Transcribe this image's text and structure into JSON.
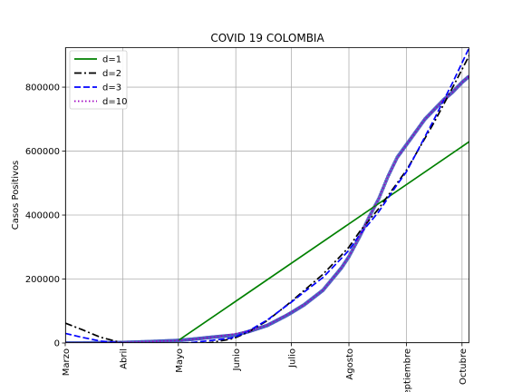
{
  "chart_data": {
    "type": "line",
    "title": "COVID 19 COLOMBIA",
    "xlabel": "",
    "ylabel": "Casos Positivos",
    "x_unit": "day of 2020",
    "xlim": [
      61,
      279
    ],
    "ylim": [
      0,
      925000
    ],
    "x_ticks": [
      {
        "x": 61,
        "label": "Marzo"
      },
      {
        "x": 92,
        "label": "Abril"
      },
      {
        "x": 122,
        "label": "Mayo"
      },
      {
        "x": 153,
        "label": "Junio"
      },
      {
        "x": 183,
        "label": "Julio"
      },
      {
        "x": 214,
        "label": "Agosto"
      },
      {
        "x": 245,
        "label": "Septiembre"
      },
      {
        "x": 275,
        "label": "Octubre"
      }
    ],
    "y_ticks": [
      {
        "y": 0,
        "label": "0"
      },
      {
        "y": 200000,
        "label": "200000"
      },
      {
        "y": 400000,
        "label": "400000"
      },
      {
        "y": 600000,
        "label": "600000"
      },
      {
        "y": 800000,
        "label": "800000"
      }
    ],
    "grid": true,
    "legend_position": "top-left",
    "observed": {
      "color": "#4a5fc1",
      "x": [
        61,
        70,
        80,
        92,
        100,
        110,
        122,
        130,
        140,
        153,
        160,
        170,
        180,
        183,
        190,
        200,
        205,
        210,
        214,
        220,
        225,
        230,
        235,
        240,
        245,
        250,
        255,
        260,
        265,
        270,
        275,
        279
      ],
      "y": [
        0,
        100,
        1000,
        1500,
        3000,
        5000,
        8000,
        12000,
        18000,
        25000,
        36000,
        55000,
        85000,
        95000,
        120000,
        165000,
        200000,
        235000,
        270000,
        335000,
        395000,
        450000,
        520000,
        580000,
        620000,
        660000,
        700000,
        730000,
        760000,
        785000,
        815000,
        835000
      ]
    },
    "series": [
      {
        "name": "d=1",
        "color": "#008000",
        "dash": "",
        "x": [
          122,
          279
        ],
        "y": [
          8000,
          630000
        ]
      },
      {
        "name": "d=2",
        "color": "#000000",
        "dash": "8,3,2,3",
        "x": [
          61,
          70,
          80,
          92,
          100,
          110,
          122,
          130,
          140,
          150,
          153,
          160,
          170,
          183,
          190,
          200,
          210,
          214,
          220,
          230,
          240,
          245,
          250,
          260,
          270,
          279
        ],
        "y": [
          62000,
          42000,
          18000,
          0,
          -8000,
          -12000,
          -10000,
          -5000,
          2000,
          12000,
          17000,
          35000,
          70000,
          130000,
          165000,
          215000,
          275000,
          300000,
          350000,
          420000,
          500000,
          540000,
          590000,
          690000,
          800000,
          900000
        ]
      },
      {
        "name": "d=3",
        "color": "#0000ff",
        "dash": "7,3",
        "x": [
          61,
          70,
          80,
          92,
          100,
          110,
          122,
          130,
          140,
          150,
          153,
          160,
          170,
          183,
          190,
          200,
          210,
          214,
          220,
          230,
          240,
          245,
          250,
          260,
          270,
          279
        ],
        "y": [
          30000,
          18000,
          6000,
          0,
          -3000,
          -4000,
          -2000,
          2000,
          8000,
          15000,
          20000,
          38000,
          72000,
          128000,
          160000,
          205000,
          265000,
          290000,
          340000,
          410000,
          495000,
          535000,
          590000,
          700000,
          815000,
          925000
        ]
      },
      {
        "name": "d=10",
        "color": "#a000c0",
        "dash": "1.5,2.5",
        "x": [
          61,
          70,
          80,
          92,
          100,
          110,
          122,
          130,
          140,
          150,
          160,
          170,
          183,
          190,
          200,
          205,
          210,
          214,
          220,
          225,
          230,
          235,
          240,
          245,
          250,
          255,
          260,
          265,
          270,
          275,
          279
        ],
        "y": [
          0,
          0,
          0,
          1500,
          3000,
          5000,
          8000,
          12000,
          18000,
          26000,
          37000,
          56000,
          96000,
          120000,
          165000,
          200000,
          235000,
          270000,
          335000,
          395000,
          450000,
          520000,
          578000,
          620000,
          660000,
          700000,
          730000,
          760000,
          785000,
          815000,
          835000
        ]
      }
    ]
  }
}
